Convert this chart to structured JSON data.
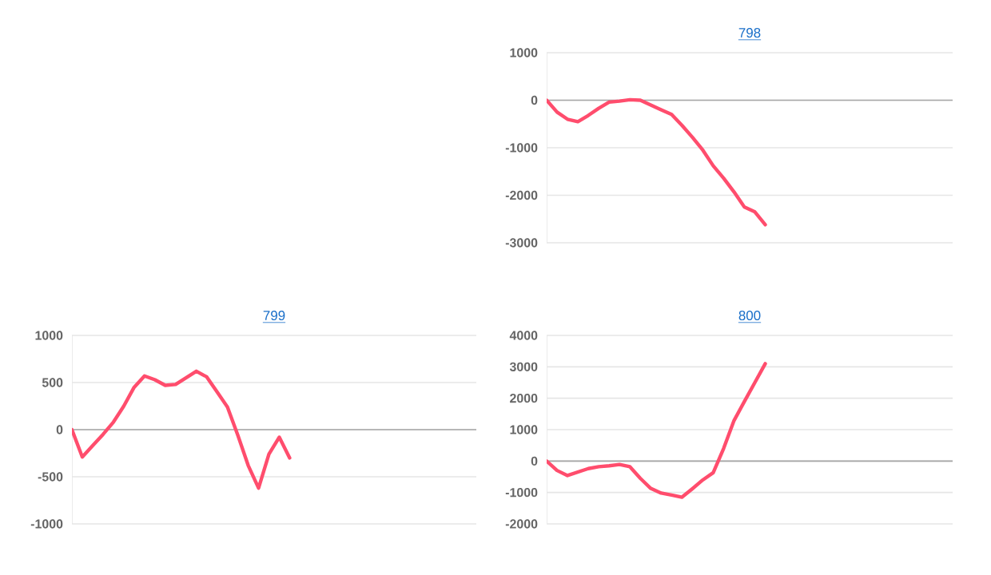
{
  "chart_data": [
    {
      "type": "line",
      "title": "798",
      "categories": [
        null,
        null,
        null,
        null,
        null,
        null,
        null,
        null,
        null,
        null,
        null,
        null,
        null,
        null,
        null,
        null,
        null,
        null,
        null,
        null,
        null,
        null,
        null,
        null,
        null,
        null,
        null,
        null,
        null,
        null,
        null,
        null,
        null,
        null,
        null,
        null,
        null,
        null,
        null,
        null
      ],
      "series": [
        {
          "color": "#ff4d6d",
          "values": [
            0,
            -250,
            -400,
            -450,
            -320,
            -170,
            -40,
            -20,
            10,
            0,
            -100,
            -200,
            -300,
            -530,
            -780,
            -1050,
            -1380,
            -1640,
            -1930,
            -2250,
            -2350,
            -2620,
            null,
            null,
            null,
            null,
            null,
            null,
            null,
            null,
            null,
            null,
            null,
            null,
            null,
            null,
            null,
            null,
            null,
            null
          ]
        }
      ],
      "ylim": [
        -3000,
        1000
      ],
      "yticks": [
        -3000,
        -2000,
        -1000,
        0,
        1000
      ],
      "grid": "y",
      "tick_labels": "y",
      "marker": "none",
      "line_style": "solid"
    },
    {
      "type": "line",
      "title": "799",
      "categories": [
        null,
        null,
        null,
        null,
        null,
        null,
        null,
        null,
        null,
        null,
        null,
        null,
        null,
        null,
        null,
        null,
        null,
        null,
        null,
        null,
        null,
        null,
        null,
        null,
        null,
        null,
        null,
        null,
        null,
        null,
        null,
        null,
        null,
        null,
        null,
        null,
        null,
        null,
        null,
        null
      ],
      "series": [
        {
          "color": "#ff4d6d",
          "values": [
            0,
            -290,
            -170,
            -50,
            80,
            250,
            450,
            570,
            530,
            470,
            480,
            550,
            620,
            560,
            400,
            240,
            -60,
            -380,
            -620,
            -260,
            -80,
            -300,
            null,
            null,
            null,
            null,
            null,
            null,
            null,
            null,
            null,
            null,
            null,
            null,
            null,
            null,
            null,
            null,
            null,
            null
          ]
        }
      ],
      "ylim": [
        -1000,
        1000
      ],
      "yticks": [
        -1000,
        -500,
        0,
        500,
        1000
      ],
      "grid": "y",
      "tick_labels": "y",
      "marker": "none",
      "line_style": "solid"
    },
    {
      "type": "line",
      "title": "800",
      "categories": [
        null,
        null,
        null,
        null,
        null,
        null,
        null,
        null,
        null,
        null,
        null,
        null,
        null,
        null,
        null,
        null,
        null,
        null,
        null,
        null,
        null,
        null,
        null,
        null,
        null,
        null,
        null,
        null,
        null,
        null,
        null,
        null,
        null,
        null,
        null,
        null,
        null,
        null,
        null,
        null
      ],
      "series": [
        {
          "color": "#ff4d6d",
          "values": [
            0,
            -300,
            -460,
            -350,
            -240,
            -180,
            -150,
            -110,
            -180,
            -550,
            -870,
            -1020,
            -1080,
            -1150,
            -880,
            -600,
            -370,
            400,
            1290,
            1900,
            2500,
            3100,
            null,
            null,
            null,
            null,
            null,
            null,
            null,
            null,
            null,
            null,
            null,
            null,
            null,
            null,
            null,
            null,
            null,
            null
          ]
        }
      ],
      "ylim": [
        -2000,
        4000
      ],
      "yticks": [
        -2000,
        -1000,
        0,
        1000,
        2000,
        3000,
        4000
      ],
      "grid": "y",
      "tick_labels": "y",
      "marker": "none",
      "line_style": "solid"
    }
  ]
}
